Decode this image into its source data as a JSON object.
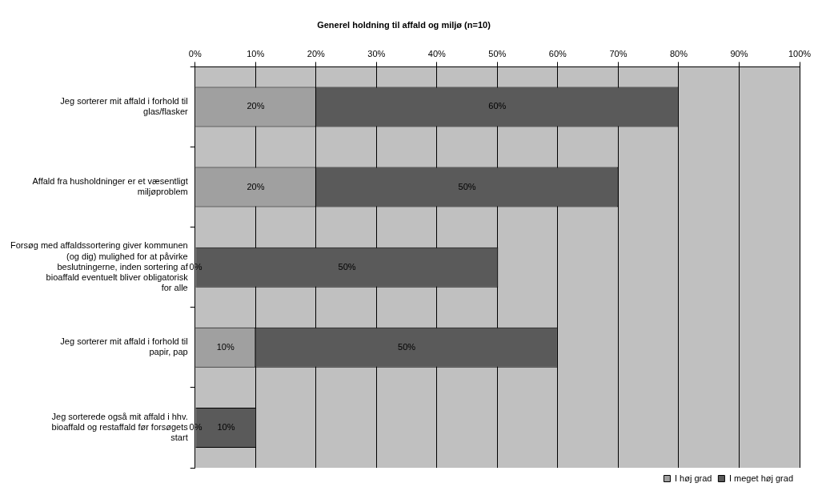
{
  "chart_data": {
    "type": "bar",
    "orientation": "horizontal",
    "stacked": true,
    "title": "Generel holdning til affald og miljø (n=10)",
    "categories": [
      "Jeg sorterer mit affald i forhold til glas/flasker",
      "Affald fra husholdninger er et væsentligt miljøproblem",
      "Forsøg med affaldssortering giver kommunen (og dig) mulighed for at påvirke beslutningerne, inden sortering af bioaffald eventuelt bliver obligatorisk for alle",
      "Jeg sorterer mit affald i forhold til papir, pap",
      "Jeg sorterede også mit affald i hhv. bioaffald og restaffald før forsøgets start"
    ],
    "series": [
      {
        "name": "I høj grad",
        "color": "#a0a0a0",
        "values": [
          20,
          20,
          0,
          10,
          0
        ],
        "value_labels": [
          "20%",
          "20%",
          "0%",
          "10%",
          "0%"
        ]
      },
      {
        "name": "I meget høj grad",
        "color": "#5a5a5a",
        "values": [
          60,
          50,
          50,
          50,
          10
        ],
        "value_labels": [
          "60%",
          "50%",
          "50%",
          "50%",
          "10%"
        ]
      }
    ],
    "xlim": [
      0,
      100
    ],
    "xticks": [
      {
        "value": 0,
        "label": "0%"
      },
      {
        "value": 10,
        "label": "10%"
      },
      {
        "value": 20,
        "label": "20%"
      },
      {
        "value": 30,
        "label": "30%"
      },
      {
        "value": 40,
        "label": "40%"
      },
      {
        "value": 50,
        "label": "50%"
      },
      {
        "value": 60,
        "label": "60%"
      },
      {
        "value": 70,
        "label": "70%"
      },
      {
        "value": 80,
        "label": "80%"
      },
      {
        "value": 90,
        "label": "90%"
      },
      {
        "value": 100,
        "label": "100%"
      }
    ],
    "grid": "x",
    "legend": "bottom right"
  }
}
